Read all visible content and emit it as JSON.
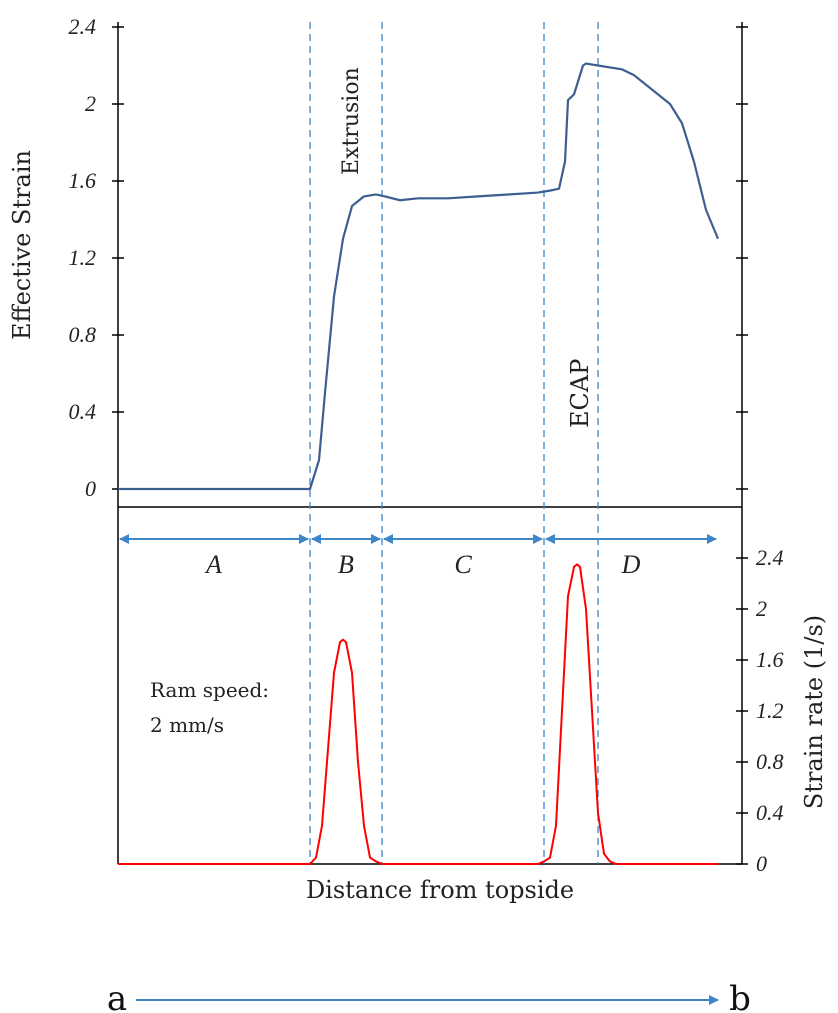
{
  "chart_data": [
    {
      "type": "line",
      "panel": "top",
      "ylabel": "Effective Strain",
      "ylim": [
        0,
        2.4
      ],
      "yticks": [
        "0",
        "0.4",
        "0.8",
        "1.2",
        "1.6",
        "2",
        "2.4"
      ],
      "xlim": [
        0,
        1
      ],
      "series": [
        {
          "color": "#3d5f8f",
          "x": [
            0,
            0.32,
            0.335,
            0.345,
            0.36,
            0.375,
            0.39,
            0.41,
            0.43,
            0.445,
            0.47,
            0.5,
            0.55,
            0.6,
            0.65,
            0.7,
            0.72,
            0.735,
            0.745,
            0.75,
            0.76,
            0.775,
            0.78,
            0.8,
            0.82,
            0.84,
            0.86,
            0.88,
            0.9,
            0.92,
            0.94,
            0.96,
            0.98,
            1.0
          ],
          "y": [
            0,
            0,
            0.15,
            0.5,
            1.0,
            1.3,
            1.47,
            1.52,
            1.53,
            1.52,
            1.5,
            1.51,
            1.51,
            1.52,
            1.53,
            1.54,
            1.55,
            1.56,
            1.7,
            2.02,
            2.05,
            2.2,
            2.21,
            2.2,
            2.19,
            2.18,
            2.15,
            2.1,
            2.05,
            2.0,
            1.9,
            1.7,
            1.45,
            1.3
          ]
        }
      ],
      "annotations": [
        "Extrusion",
        "ECAP"
      ]
    },
    {
      "type": "line",
      "panel": "bottom",
      "ylabel": "Strain rate (1/s)",
      "ylim": [
        0,
        2.4
      ],
      "yticks": [
        "0",
        "0.4",
        "0.8",
        "1.2",
        "1.6",
        "2",
        "2.4"
      ],
      "xlabel": "Distance from topside",
      "xlim": [
        0,
        1
      ],
      "series": [
        {
          "color": "#ff0000",
          "x": [
            0,
            0.32,
            0.33,
            0.34,
            0.35,
            0.36,
            0.37,
            0.375,
            0.38,
            0.39,
            0.4,
            0.41,
            0.42,
            0.43,
            0.44,
            0.5,
            0.6,
            0.7,
            0.71,
            0.72,
            0.73,
            0.74,
            0.75,
            0.76,
            0.765,
            0.77,
            0.78,
            0.79,
            0.8,
            0.81,
            0.82,
            0.83,
            0.9,
            1.0
          ],
          "y": [
            0,
            0,
            0.05,
            0.3,
            0.9,
            1.5,
            1.74,
            1.76,
            1.74,
            1.5,
            0.8,
            0.3,
            0.05,
            0.02,
            0.0,
            0.0,
            0.0,
            0.0,
            0.02,
            0.05,
            0.3,
            1.2,
            2.1,
            2.33,
            2.35,
            2.33,
            2.0,
            1.2,
            0.4,
            0.08,
            0.02,
            0.0,
            0.0,
            0.0
          ]
        }
      ]
    }
  ],
  "regions": {
    "labels": [
      "A",
      "B",
      "C",
      "D"
    ],
    "boundaries": [
      0,
      0.32,
      0.44,
      0.71,
      1.0
    ]
  },
  "vlines": [
    0.32,
    0.44,
    0.71,
    0.8
  ],
  "note": {
    "line1": "Ram speed:",
    "line2": "2 mm/s"
  },
  "arrow": {
    "start": "a",
    "end": "b"
  },
  "colors": {
    "strain_line": "#3d5f8f",
    "rate_line": "#ff0000",
    "arrow_blue": "#3f86c8",
    "dash_blue": "#3f86c8"
  }
}
